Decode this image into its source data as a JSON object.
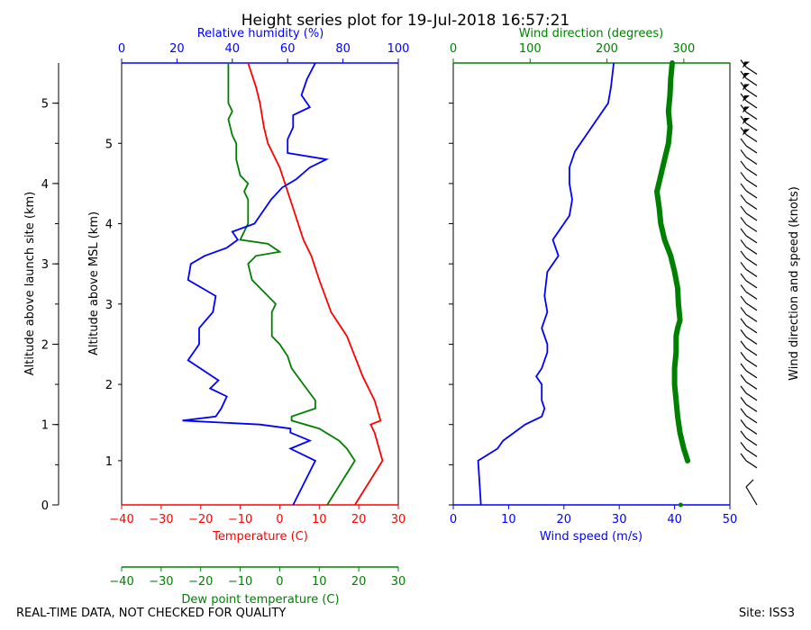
{
  "title": "Height series plot for 19-Jul-2018 16:57:21",
  "footer_left": "REAL-TIME DATA, NOT CHECKED FOR QUALITY",
  "footer_right": "Site: ISS3",
  "colors": {
    "temperature": "#ff0000",
    "dewpoint": "#008000",
    "rh": "#0000ff",
    "wind_speed": "#0000ff",
    "wind_dir": "#008000",
    "barbs": "#000000"
  },
  "chart_data": [
    {
      "type": "line",
      "panel": "thermodynamic profile",
      "y_left_outer": {
        "label": "Altitude above launch site (km)",
        "ticks": [
          "0",
          "1",
          "2",
          "3",
          "4",
          "5"
        ]
      },
      "y_left_inner": {
        "label": "Altitude above MSL (km)",
        "ticks": [
          "1",
          "2",
          "3",
          "4",
          "5"
        ]
      },
      "x_bottom": {
        "label": "Temperature (C)",
        "range": [
          -40,
          30
        ],
        "ticks": [
          "−40",
          "−30",
          "−20",
          "−10",
          "0",
          "10",
          "20",
          "30"
        ]
      },
      "x_bottom2": {
        "label": "Dew point temperature (C)",
        "range": [
          -40,
          30
        ],
        "ticks": [
          "−40",
          "−30",
          "−20",
          "−10",
          "0",
          "10",
          "20",
          "30"
        ]
      },
      "x_top": {
        "label": "Relative humidity (%)",
        "range": [
          0,
          100
        ],
        "ticks": [
          "0",
          "20",
          "40",
          "60",
          "80",
          "100"
        ]
      },
      "y_range_km": [
        0,
        5.5
      ],
      "series": [
        {
          "name": "Temperature",
          "x_units": "C",
          "points": [
            [
              19,
              0
            ],
            [
              26,
              0.55
            ],
            [
              24,
              0.9
            ],
            [
              23,
              1.0
            ],
            [
              25.5,
              1.05
            ],
            [
              24,
              1.3
            ],
            [
              21,
              1.6
            ],
            [
              17,
              2.1
            ],
            [
              13,
              2.4
            ],
            [
              10,
              2.8
            ],
            [
              8,
              3.1
            ],
            [
              6,
              3.3
            ],
            [
              4,
              3.6
            ],
            [
              2,
              3.9
            ],
            [
              0,
              4.2
            ],
            [
              -3,
              4.5
            ],
            [
              -4,
              4.7
            ],
            [
              -5,
              5.0
            ],
            [
              -6,
              5.2
            ],
            [
              -8,
              5.5
            ]
          ]
        },
        {
          "name": "Dew point",
          "x_units": "C",
          "points": [
            [
              12,
              0
            ],
            [
              19,
              0.55
            ],
            [
              17,
              0.7
            ],
            [
              15,
              0.8
            ],
            [
              10,
              0.95
            ],
            [
              3,
              1.05
            ],
            [
              3,
              1.1
            ],
            [
              9,
              1.2
            ],
            [
              9,
              1.3
            ],
            [
              6,
              1.5
            ],
            [
              3,
              1.7
            ],
            [
              2,
              1.85
            ],
            [
              0,
              2.0
            ],
            [
              -2,
              2.1
            ],
            [
              -2,
              2.4
            ],
            [
              -1,
              2.5
            ],
            [
              -3,
              2.6
            ],
            [
              -7,
              2.8
            ],
            [
              -8,
              3.0
            ],
            [
              -6,
              3.1
            ],
            [
              0,
              3.15
            ],
            [
              -3,
              3.25
            ],
            [
              -10,
              3.3
            ],
            [
              -8,
              3.5
            ],
            [
              -8,
              3.8
            ],
            [
              -9,
              3.9
            ],
            [
              -8,
              4.0
            ],
            [
              -10,
              4.1
            ],
            [
              -11,
              4.3
            ],
            [
              -11,
              4.5
            ],
            [
              -12,
              4.6
            ],
            [
              -13,
              4.8
            ],
            [
              -12,
              4.9
            ],
            [
              -13,
              5.0
            ],
            [
              -13,
              5.3
            ],
            [
              -13,
              5.5
            ]
          ]
        },
        {
          "name": "Relative humidity",
          "x_units": "%",
          "points": [
            [
              62,
              0
            ],
            [
              70,
              0.55
            ],
            [
              61,
              0.7
            ],
            [
              68,
              0.8
            ],
            [
              61,
              0.9
            ],
            [
              61,
              0.95
            ],
            [
              50,
              1.0
            ],
            [
              22,
              1.05
            ],
            [
              34,
              1.1
            ],
            [
              36,
              1.2
            ],
            [
              38,
              1.35
            ],
            [
              32,
              1.45
            ],
            [
              35,
              1.55
            ],
            [
              24,
              1.8
            ],
            [
              28,
              2.0
            ],
            [
              28,
              2.2
            ],
            [
              33,
              2.4
            ],
            [
              34,
              2.6
            ],
            [
              24,
              2.8
            ],
            [
              25,
              3.0
            ],
            [
              30,
              3.1
            ],
            [
              38,
              3.2
            ],
            [
              42,
              3.3
            ],
            [
              40,
              3.4
            ],
            [
              44,
              3.45
            ],
            [
              48,
              3.5
            ],
            [
              52,
              3.7
            ],
            [
              54,
              3.8
            ],
            [
              58,
              3.95
            ],
            [
              63,
              4.05
            ],
            [
              68,
              4.2
            ],
            [
              74,
              4.3
            ],
            [
              60,
              4.38
            ],
            [
              60,
              4.45
            ],
            [
              60,
              4.55
            ],
            [
              62,
              4.7
            ],
            [
              62,
              4.85
            ],
            [
              68,
              4.95
            ],
            [
              65,
              5.1
            ],
            [
              67,
              5.3
            ],
            [
              70,
              5.5
            ]
          ]
        }
      ]
    },
    {
      "type": "line",
      "panel": "wind profile",
      "x_bottom": {
        "label": "Wind speed (m/s)",
        "range": [
          0,
          50
        ],
        "ticks": [
          "0",
          "10",
          "20",
          "30",
          "40",
          "50"
        ]
      },
      "x_top": {
        "label": "Wind direction (degrees)",
        "range": [
          0,
          360
        ],
        "ticks": [
          "0",
          "100",
          "200",
          "300"
        ]
      },
      "y_right": {
        "label": "Wind direction and speed (knots)"
      },
      "y_range_km": [
        0,
        5.5
      ],
      "series": [
        {
          "name": "Wind speed",
          "x_units": "m/s",
          "points": [
            [
              5,
              0
            ],
            [
              4.5,
              0.55
            ],
            [
              8,
              0.7
            ],
            [
              9,
              0.8
            ],
            [
              13,
              1.0
            ],
            [
              16,
              1.1
            ],
            [
              16.5,
              1.2
            ],
            [
              16,
              1.3
            ],
            [
              16,
              1.5
            ],
            [
              15,
              1.6
            ],
            [
              16,
              1.7
            ],
            [
              17,
              1.9
            ],
            [
              17,
              2.0
            ],
            [
              16,
              2.2
            ],
            [
              17,
              2.4
            ],
            [
              16.5,
              2.6
            ],
            [
              17,
              2.9
            ],
            [
              19,
              3.1
            ],
            [
              18,
              3.3
            ],
            [
              20,
              3.5
            ],
            [
              21,
              3.6
            ],
            [
              21.5,
              3.8
            ],
            [
              21,
              4.0
            ],
            [
              21,
              4.2
            ],
            [
              22,
              4.4
            ],
            [
              24,
              4.6
            ],
            [
              26,
              4.8
            ],
            [
              28,
              5.0
            ],
            [
              28.5,
              5.2
            ],
            [
              29,
              5.5
            ]
          ]
        },
        {
          "name": "Wind direction",
          "x_units": "degrees",
          "points": [
            [
              305,
              0.55
            ],
            [
              300,
              0.7
            ],
            [
              295,
              0.9
            ],
            [
              292,
              1.1
            ],
            [
              290,
              1.3
            ],
            [
              288,
              1.5
            ],
            [
              288,
              1.7
            ],
            [
              290,
              1.9
            ],
            [
              290,
              2.1
            ],
            [
              292,
              2.2
            ],
            [
              295,
              2.3
            ],
            [
              293,
              2.5
            ],
            [
              292,
              2.7
            ],
            [
              288,
              2.9
            ],
            [
              283,
              3.1
            ],
            [
              275,
              3.3
            ],
            [
              270,
              3.5
            ],
            [
              268,
              3.7
            ],
            [
              265,
              3.9
            ],
            [
              270,
              4.1
            ],
            [
              275,
              4.3
            ],
            [
              280,
              4.5
            ],
            [
              282,
              4.7
            ],
            [
              280,
              4.9
            ],
            [
              282,
              5.1
            ],
            [
              283,
              5.3
            ],
            [
              285,
              5.5
            ]
          ]
        }
      ]
    }
  ]
}
